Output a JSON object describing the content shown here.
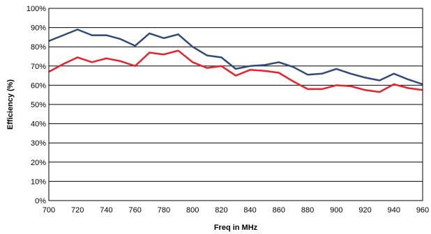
{
  "chart_data": {
    "type": "line",
    "title": "",
    "xlabel": "Freq in MHz",
    "ylabel": "Efficiency (%)",
    "xlim": [
      700,
      960
    ],
    "ylim": [
      0,
      100
    ],
    "x_ticks": [
      700,
      720,
      740,
      760,
      780,
      800,
      820,
      840,
      860,
      880,
      900,
      920,
      940,
      960
    ],
    "y_ticks": [
      0,
      10,
      20,
      30,
      40,
      50,
      60,
      70,
      80,
      90,
      100
    ],
    "y_tick_suffix": "%",
    "grid": "horizontal",
    "legend": "none",
    "x": [
      700,
      710,
      720,
      730,
      740,
      750,
      760,
      770,
      780,
      790,
      800,
      810,
      820,
      830,
      840,
      850,
      860,
      870,
      880,
      890,
      900,
      910,
      920,
      930,
      940,
      950,
      960
    ],
    "series": [
      {
        "color": "#2e4a7c",
        "values": [
          83,
          86,
          89,
          86,
          86,
          84,
          80.5,
          87,
          84.5,
          86.5,
          80,
          75.5,
          74.5,
          68.5,
          70,
          70.5,
          72,
          69.5,
          65.5,
          66,
          68.5,
          66,
          64,
          62.5,
          66,
          63,
          60.5
        ]
      },
      {
        "color": "#ee1f2a",
        "values": [
          67,
          71,
          74.5,
          72,
          74,
          72.5,
          70,
          77,
          76,
          78,
          72,
          69,
          70,
          65,
          68,
          67.5,
          66.5,
          62,
          58,
          58,
          60,
          59.5,
          57.5,
          56.5,
          60.5,
          58.5,
          57.5
        ]
      }
    ]
  }
}
